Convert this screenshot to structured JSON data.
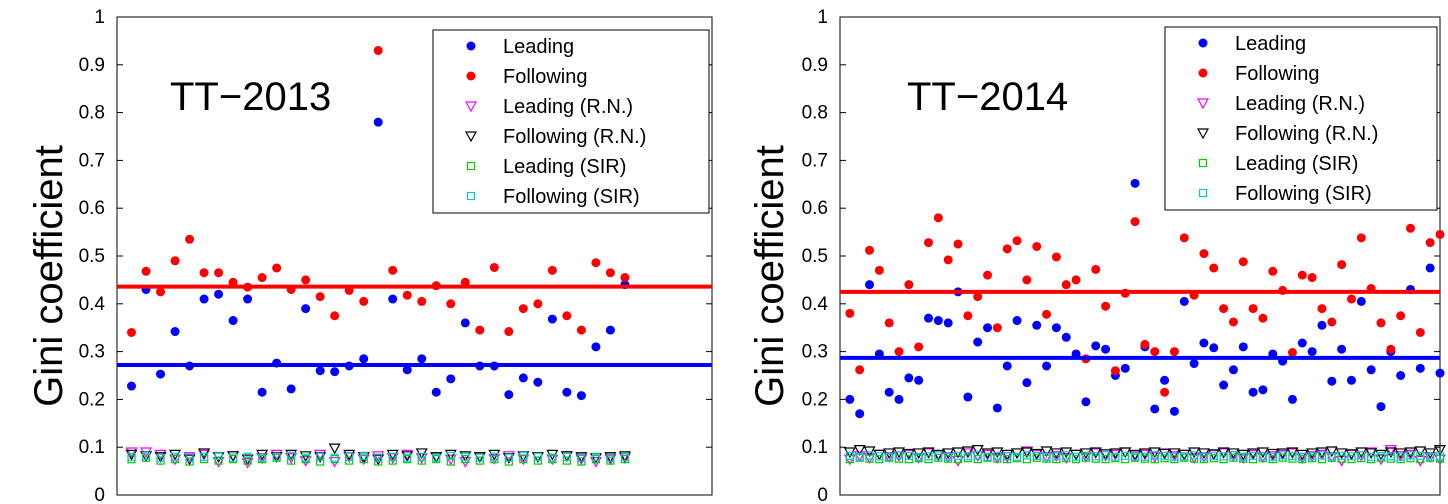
{
  "chart_data": [
    {
      "type": "scatter",
      "title": "TT−2013",
      "ylabel": "Gini coefficient",
      "ylim": [
        0,
        1
      ],
      "yticks": [
        "0",
        "0.1",
        "0.2",
        "0.3",
        "0.4",
        "0.5",
        "0.6",
        "0.7",
        "0.8",
        "0.9",
        "1"
      ],
      "xlim": [
        0,
        41
      ],
      "grid": false,
      "legend_position": "top-right",
      "hlines": [
        {
          "series": "Following",
          "y": 0.436,
          "color": "#ff0000"
        },
        {
          "series": "Leading",
          "y": 0.272,
          "color": "#0000ff"
        }
      ],
      "series": [
        {
          "name": "Leading",
          "marker": "dot",
          "color": "#0000ff",
          "values": [
            0.228,
            0.43,
            0.253,
            0.342,
            0.27,
            0.41,
            0.42,
            0.365,
            0.41,
            0.215,
            0.276,
            0.222,
            0.39,
            0.26,
            0.258,
            0.27,
            0.285,
            0.78,
            0.41,
            0.262,
            0.285,
            0.215,
            0.243,
            0.36,
            0.27,
            0.27,
            0.21,
            0.245,
            0.236,
            0.368,
            0.215,
            0.208,
            0.31,
            0.345,
            0.44
          ]
        },
        {
          "name": "Following",
          "marker": "dot",
          "color": "#ff0000",
          "values": [
            0.34,
            0.468,
            0.425,
            0.49,
            0.535,
            0.465,
            0.465,
            0.445,
            0.435,
            0.455,
            0.475,
            0.43,
            0.45,
            0.415,
            0.375,
            0.428,
            0.405,
            0.93,
            0.47,
            0.418,
            0.405,
            0.438,
            0.4,
            0.445,
            0.345,
            0.476,
            0.342,
            0.39,
            0.4,
            0.47,
            0.375,
            0.345,
            0.486,
            0.465,
            0.455
          ]
        },
        {
          "name": "Leading (R.N.)",
          "marker": "triangle-down",
          "color": "#ff00ff",
          "values": [
            0.09,
            0.09,
            0.085,
            0.075,
            0.08,
            0.085,
            0.07,
            0.082,
            0.068,
            0.078,
            0.085,
            0.078,
            0.072,
            0.085,
            0.07,
            0.08,
            0.075,
            0.082,
            0.078,
            0.085,
            0.078,
            0.08,
            0.075,
            0.07,
            0.08,
            0.076,
            0.082,
            0.075,
            0.08,
            0.075,
            0.082,
            0.075,
            0.07,
            0.075,
            0.078
          ]
        },
        {
          "name": "Following (R.N.)",
          "marker": "triangle-down",
          "color": "#000000",
          "values": [
            0.085,
            0.082,
            0.08,
            0.085,
            0.075,
            0.088,
            0.08,
            0.082,
            0.075,
            0.085,
            0.08,
            0.085,
            0.082,
            0.08,
            0.098,
            0.085,
            0.08,
            0.075,
            0.085,
            0.082,
            0.088,
            0.08,
            0.085,
            0.082,
            0.08,
            0.085,
            0.078,
            0.082,
            0.08,
            0.085,
            0.082,
            0.08,
            0.078,
            0.08,
            0.082
          ]
        },
        {
          "name": "Leading (SIR)",
          "marker": "square",
          "color": "#00cc00",
          "values": [
            0.075,
            0.078,
            0.072,
            0.075,
            0.07,
            0.075,
            0.072,
            0.075,
            0.072,
            0.075,
            0.078,
            0.072,
            0.075,
            0.07,
            0.075,
            0.072,
            0.075,
            0.07,
            0.072,
            0.075,
            0.072,
            0.075,
            0.07,
            0.075,
            0.072,
            0.075,
            0.07,
            0.075,
            0.072,
            0.075,
            0.072,
            0.07,
            0.075,
            0.072,
            0.075
          ]
        },
        {
          "name": "Following (SIR)",
          "marker": "square",
          "color": "#00cccc",
          "values": [
            0.08,
            0.082,
            0.078,
            0.08,
            0.078,
            0.08,
            0.082,
            0.078,
            0.08,
            0.078,
            0.08,
            0.082,
            0.078,
            0.08,
            0.078,
            0.08,
            0.082,
            0.078,
            0.08,
            0.078,
            0.08,
            0.078,
            0.082,
            0.08,
            0.078,
            0.08,
            0.078,
            0.082,
            0.08,
            0.078,
            0.08,
            0.078,
            0.08,
            0.078,
            0.08
          ]
        }
      ]
    },
    {
      "type": "scatter",
      "title": "TT−2014",
      "ylabel": "Gini coefficient",
      "ylim": [
        0,
        1
      ],
      "yticks": [
        "0",
        "0.1",
        "0.2",
        "0.3",
        "0.4",
        "0.5",
        "0.6",
        "0.7",
        "0.8",
        "0.9",
        "1"
      ],
      "xlim": [
        0,
        61
      ],
      "grid": false,
      "legend_position": "top-right",
      "hlines": [
        {
          "series": "Following",
          "y": 0.425,
          "color": "#ff0000"
        },
        {
          "series": "Leading",
          "y": 0.287,
          "color": "#0000ff"
        }
      ],
      "series": [
        {
          "name": "Leading",
          "marker": "dot",
          "color": "#0000ff",
          "values": [
            0.2,
            0.17,
            0.44,
            0.295,
            0.215,
            0.2,
            0.245,
            0.24,
            0.37,
            0.365,
            0.36,
            0.425,
            0.205,
            0.32,
            0.35,
            0.182,
            0.27,
            0.365,
            0.235,
            0.355,
            0.27,
            0.35,
            0.33,
            0.295,
            0.195,
            0.312,
            0.305,
            0.25,
            0.265,
            0.652,
            0.31,
            0.18,
            0.24,
            0.175,
            0.405,
            0.275,
            0.318,
            0.308,
            0.23,
            0.262,
            0.31,
            0.215,
            0.22,
            0.295,
            0.28,
            0.2,
            0.318,
            0.3,
            0.355,
            0.238,
            0.305,
            0.24,
            0.405,
            0.262,
            0.185,
            0.3,
            0.25,
            0.43,
            0.265,
            0.475,
            0.255
          ]
        },
        {
          "name": "Following",
          "marker": "dot",
          "color": "#ff0000",
          "values": [
            0.38,
            0.262,
            0.512,
            0.47,
            0.36,
            0.3,
            0.44,
            0.31,
            0.528,
            0.58,
            0.492,
            0.525,
            0.375,
            0.415,
            0.46,
            0.35,
            0.515,
            0.532,
            0.45,
            0.52,
            0.378,
            0.498,
            0.44,
            0.45,
            0.285,
            0.472,
            0.395,
            0.26,
            0.422,
            0.572,
            0.315,
            0.3,
            0.215,
            0.3,
            0.538,
            0.418,
            0.505,
            0.475,
            0.39,
            0.362,
            0.488,
            0.39,
            0.37,
            0.468,
            0.428,
            0.298,
            0.46,
            0.455,
            0.39,
            0.362,
            0.482,
            0.41,
            0.538,
            0.432,
            0.36,
            0.305,
            0.375,
            0.558,
            0.34,
            0.528,
            0.545
          ]
        },
        {
          "name": "Leading (R.N.)",
          "marker": "triangle-down",
          "color": "#ff00ff",
          "values": [
            0.075,
            0.082,
            0.078,
            0.085,
            0.08,
            0.082,
            0.085,
            0.078,
            0.088,
            0.082,
            0.08,
            0.072,
            0.088,
            0.082,
            0.085,
            0.078,
            0.08,
            0.088,
            0.092,
            0.085,
            0.08,
            0.082,
            0.078,
            0.085,
            0.08,
            0.088,
            0.082,
            0.085,
            0.09,
            0.082,
            0.085,
            0.08,
            0.088,
            0.082,
            0.085,
            0.078,
            0.08,
            0.085,
            0.088,
            0.082,
            0.078,
            0.085,
            0.08,
            0.082,
            0.085,
            0.088,
            0.078,
            0.082,
            0.085,
            0.08,
            0.072,
            0.085,
            0.082,
            0.09,
            0.075,
            0.095,
            0.082,
            0.085,
            0.072,
            0.08,
            0.075
          ]
        },
        {
          "name": "Following (R.N.)",
          "marker": "triangle-down",
          "color": "#000000",
          "values": [
            0.09,
            0.095,
            0.092,
            0.085,
            0.088,
            0.09,
            0.087,
            0.088,
            0.09,
            0.085,
            0.088,
            0.09,
            0.092,
            0.095,
            0.088,
            0.09,
            0.085,
            0.088,
            0.09,
            0.087,
            0.092,
            0.088,
            0.09,
            0.085,
            0.088,
            0.09,
            0.086,
            0.088,
            0.09,
            0.085,
            0.088,
            0.09,
            0.087,
            0.088,
            0.085,
            0.09,
            0.088,
            0.086,
            0.09,
            0.088,
            0.085,
            0.088,
            0.09,
            0.087,
            0.088,
            0.09,
            0.085,
            0.088,
            0.09,
            0.092,
            0.088,
            0.086,
            0.09,
            0.088,
            0.085,
            0.09,
            0.088,
            0.09,
            0.092,
            0.088,
            0.095
          ]
        },
        {
          "name": "Leading (SIR)",
          "marker": "square",
          "color": "#00cc00",
          "values": [
            0.075,
            0.078,
            0.076,
            0.075,
            0.078,
            0.076,
            0.075,
            0.077,
            0.075,
            0.078,
            0.076,
            0.075,
            0.077,
            0.075,
            0.078,
            0.076,
            0.075,
            0.077,
            0.075,
            0.078,
            0.076,
            0.075,
            0.077,
            0.075,
            0.078,
            0.076,
            0.075,
            0.077,
            0.075,
            0.078,
            0.076,
            0.075,
            0.077,
            0.075,
            0.078,
            0.076,
            0.075,
            0.077,
            0.075,
            0.078,
            0.076,
            0.075,
            0.077,
            0.075,
            0.078,
            0.076,
            0.075,
            0.077,
            0.075,
            0.078,
            0.076,
            0.075,
            0.077,
            0.075,
            0.078,
            0.076,
            0.075,
            0.077,
            0.075,
            0.078,
            0.076
          ]
        },
        {
          "name": "Following (SIR)",
          "marker": "square",
          "color": "#00cccc",
          "values": [
            0.082,
            0.08,
            0.083,
            0.081,
            0.08,
            0.083,
            0.082,
            0.08,
            0.081,
            0.083,
            0.08,
            0.082,
            0.081,
            0.083,
            0.08,
            0.082,
            0.081,
            0.08,
            0.083,
            0.082,
            0.08,
            0.081,
            0.083,
            0.08,
            0.082,
            0.081,
            0.083,
            0.08,
            0.082,
            0.081,
            0.08,
            0.083,
            0.082,
            0.08,
            0.081,
            0.083,
            0.08,
            0.082,
            0.081,
            0.083,
            0.08,
            0.082,
            0.081,
            0.08,
            0.083,
            0.082,
            0.08,
            0.081,
            0.083,
            0.08,
            0.082,
            0.081,
            0.083,
            0.08,
            0.082,
            0.081,
            0.08,
            0.083,
            0.082,
            0.08,
            0.081
          ]
        }
      ]
    }
  ]
}
